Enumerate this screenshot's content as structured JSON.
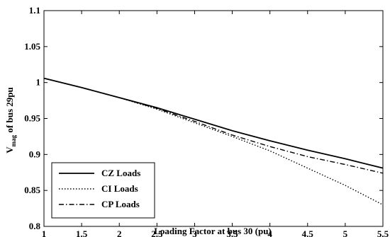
{
  "chart_data": {
    "type": "line",
    "title": "",
    "xlabel": "Loading Factor at bus 30 (pu)",
    "ylabel_main": "V",
    "ylabel_sub": "mag",
    "ylabel_rest": " of bus 29pu",
    "xlim": [
      1,
      5.5
    ],
    "ylim": [
      0.8,
      1.1
    ],
    "xticks": [
      "1",
      "1.5",
      "2",
      "2.5",
      "3",
      "3.5",
      "4",
      "4.5",
      "5",
      "5.5"
    ],
    "yticks": [
      "0.8",
      "0.85",
      "0.9",
      "0.95",
      "1",
      "1.05",
      "1.1"
    ],
    "grid": false,
    "legend_position": "bottom-left",
    "series": [
      {
        "name": "CZ Loads",
        "dash": "solid",
        "x": [
          1,
          1.5,
          2,
          2.5,
          3,
          3.5,
          4,
          4.5,
          5,
          5.5
        ],
        "y": [
          1.006,
          0.993,
          0.979,
          0.965,
          0.949,
          0.933,
          0.919,
          0.906,
          0.894,
          0.881
        ]
      },
      {
        "name": "CI Loads",
        "dash": "dotted",
        "x": [
          1,
          1.5,
          2,
          2.5,
          3,
          3.5,
          4,
          4.5,
          5,
          5.5
        ],
        "y": [
          1.006,
          0.993,
          0.979,
          0.963,
          0.944,
          0.925,
          0.905,
          0.881,
          0.857,
          0.83
        ]
      },
      {
        "name": "CP Loads",
        "dash": "dashdot",
        "x": [
          1,
          1.5,
          2,
          2.5,
          3,
          3.5,
          4,
          4.5,
          5,
          5.5
        ],
        "y": [
          1.006,
          0.993,
          0.979,
          0.964,
          0.946,
          0.927,
          0.911,
          0.897,
          0.886,
          0.874
        ]
      }
    ]
  }
}
